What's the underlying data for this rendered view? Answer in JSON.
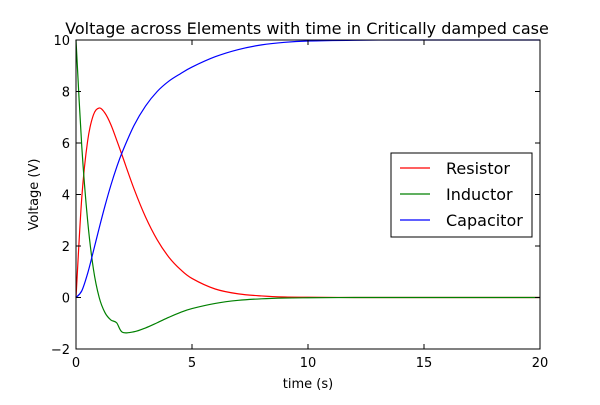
{
  "chart_data": {
    "type": "line",
    "title": "Voltage across Elements with time in Critically damped case",
    "xlabel": "time (s)",
    "ylabel": "Voltage (V)",
    "xlim": [
      0,
      20
    ],
    "ylim": [
      -2,
      10
    ],
    "xticks": [
      0,
      5,
      10,
      15,
      20
    ],
    "yticks": [
      -2,
      0,
      2,
      4,
      6,
      8,
      10
    ],
    "grid": false,
    "legend_position": "center-right",
    "x": [
      0,
      0.25,
      0.5,
      0.75,
      1,
      1.25,
      1.5,
      1.75,
      2,
      2.5,
      3,
      3.5,
      4,
      4.5,
      5,
      6,
      7,
      8,
      9,
      10,
      12,
      14,
      16,
      18,
      20
    ],
    "series": [
      {
        "name": "Resistor",
        "color": "#ff0000",
        "values": [
          0,
          3.89,
          6.07,
          7.09,
          7.36,
          7.16,
          6.72,
          6.12,
          5.49,
          4.22,
          3.12,
          2.24,
          1.57,
          1.09,
          0.74,
          0.33,
          0.14,
          0.06,
          0.02,
          0.01,
          0,
          0,
          0,
          0,
          0
        ]
      },
      {
        "name": "Inductor",
        "color": "#008000",
        "values": [
          10,
          5.85,
          3.0,
          1.11,
          0,
          -0.59,
          -0.87,
          -0.98,
          -1.35,
          -1.33,
          -1.18,
          -0.98,
          -0.77,
          -0.58,
          -0.43,
          -0.23,
          -0.11,
          -0.05,
          -0.02,
          -0.01,
          0,
          0,
          0,
          0,
          0
        ]
      },
      {
        "name": "Capacitor",
        "color": "#0000ff",
        "values": [
          0,
          0.26,
          0.93,
          1.8,
          2.7,
          3.56,
          4.35,
          5.05,
          5.66,
          6.68,
          7.44,
          8.0,
          8.4,
          8.69,
          8.95,
          9.35,
          9.63,
          9.81,
          9.91,
          9.96,
          9.99,
          10,
          10,
          10,
          10
        ]
      }
    ]
  }
}
